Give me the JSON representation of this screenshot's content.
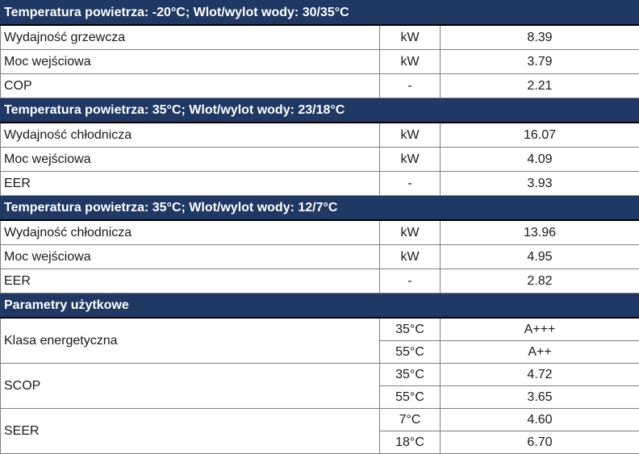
{
  "sections": [
    {
      "header": "Temperatura powietrza: -20°C; Wlot/wylot wody: 30/35°C",
      "rows": [
        {
          "name": "Wydajność grzewcza",
          "unit": "kW",
          "value": "8.39"
        },
        {
          "name": "Moc wejściowa",
          "unit": "kW",
          "value": "3.79"
        },
        {
          "name": "COP",
          "unit": "-",
          "value": "2.21"
        }
      ]
    },
    {
      "header": "Temperatura powietrza: 35°C; Wlot/wylot wody: 23/18°C",
      "rows": [
        {
          "name": "Wydajność chłodnicza",
          "unit": "kW",
          "value": "16.07"
        },
        {
          "name": "Moc wejściowa",
          "unit": "kW",
          "value": "4.09"
        },
        {
          "name": "EER",
          "unit": "-",
          "value": "3.93"
        }
      ]
    },
    {
      "header": "Temperatura powietrza: 35°C; Wlot/wylot wody: 12/7°C",
      "rows": [
        {
          "name": "Wydajność chłodnicza",
          "unit": "kW",
          "value": "13.96"
        },
        {
          "name": "Moc wejściowa",
          "unit": "kW",
          "value": "4.95"
        },
        {
          "name": "EER",
          "unit": "-",
          "value": "2.82"
        }
      ]
    }
  ],
  "usage": {
    "header": "Parametry użytkowe",
    "groups": [
      {
        "name": "Klasa energetyczna",
        "items": [
          {
            "cond": "35°C",
            "value": "A+++"
          },
          {
            "cond": "55°C",
            "value": "A++"
          }
        ]
      },
      {
        "name": "SCOP",
        "items": [
          {
            "cond": "35°C",
            "value": "4.72"
          },
          {
            "cond": "55°C",
            "value": "3.65"
          }
        ]
      },
      {
        "name": "SEER",
        "items": [
          {
            "cond": "7°C",
            "value": "4.60"
          },
          {
            "cond": "18°C",
            "value": "6.70"
          }
        ]
      }
    ]
  }
}
